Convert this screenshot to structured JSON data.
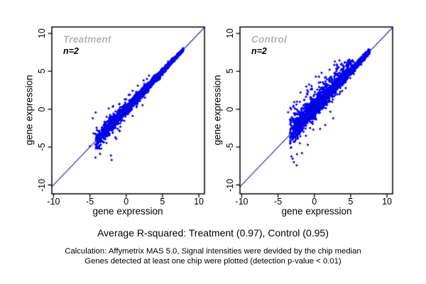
{
  "colors": {
    "point": "#0000f0",
    "identity_line": "#1616b4",
    "panel_title": "#b4b4b4",
    "axis": "#000000"
  },
  "captions": {
    "summary": "Average R-squared: Treatment (0.97), Control (0.95)",
    "footnote1": "Calculation: Affymetrix MAS 5.0, Signal intensities were devided by the chip median",
    "footnote2": "Genes detected at least one chip were plotted (detection p-value < 0.01)"
  },
  "chart_data": [
    {
      "type": "scatter",
      "title": "Treatment",
      "annotation": "n=2",
      "r_squared": 0.97,
      "xlabel": "gene expression",
      "ylabel": "gene expression",
      "xlim": [
        -10.24,
        10.78
      ],
      "ylim": [
        -11.17,
        10.85
      ],
      "xticks": [
        -10,
        -5,
        0,
        5,
        10
      ],
      "yticks": [
        -10,
        -5,
        0,
        5,
        10
      ],
      "identity_line": true,
      "cluster": {
        "seed": 42,
        "n": 3000,
        "x_min": -4.3,
        "x_max": 7.85,
        "density_power": 0.72,
        "sd_base": 0.1,
        "sd_extra": 0.5,
        "sd_power": 1.6,
        "wide_n": 140,
        "wide_mult": 2.6,
        "above_n": 0,
        "above_x_min": 0,
        "above_x_max": 0,
        "above_sd": 0
      },
      "outliers": [
        [
          -3.5,
          -4.7
        ],
        [
          -3.6,
          -5.9
        ],
        [
          -2.1,
          -6.1
        ],
        [
          -2.0,
          -6.7
        ],
        [
          -4.5,
          -3.2
        ],
        [
          -4.2,
          -4.6
        ],
        [
          -5.0,
          -4.9
        ],
        [
          -4.6,
          -1.2
        ],
        [
          -2.7,
          -1.0
        ],
        [
          -1.5,
          -3.7
        ],
        [
          -0.9,
          -2.9
        ],
        [
          -0.2,
          1.3
        ],
        [
          0.5,
          1.9
        ],
        [
          1.6,
          3.1
        ],
        [
          2.4,
          3.8
        ],
        [
          -3.1,
          -2.1
        ],
        [
          -1.8,
          0.4
        ],
        [
          0.9,
          -0.9
        ]
      ]
    },
    {
      "type": "scatter",
      "title": "Control",
      "annotation": "n=2",
      "r_squared": 0.95,
      "xlabel": "gene expression",
      "ylabel": "gene expression",
      "xlim": [
        -10.24,
        10.78
      ],
      "ylim": [
        -11.17,
        10.85
      ],
      "xticks": [
        -10,
        -5,
        0,
        5,
        10
      ],
      "yticks": [
        -10,
        -5,
        0,
        5,
        10
      ],
      "identity_line": true,
      "cluster": {
        "seed": 77,
        "n": 3000,
        "x_min": -3.4,
        "x_max": 7.6,
        "density_power": 0.7,
        "sd_base": 0.13,
        "sd_extra": 0.62,
        "sd_power": 1.35,
        "wide_n": 210,
        "wide_mult": 2.8,
        "above_n": 300,
        "above_x_min": -3.2,
        "above_x_max": 5.2,
        "above_sd": 1.25
      },
      "outliers": [
        [
          -3.6,
          -0.4
        ],
        [
          -3.2,
          0.0
        ],
        [
          -2.9,
          0.3
        ],
        [
          -2.4,
          1.0
        ],
        [
          -2.6,
          -0.7
        ],
        [
          -3.3,
          -1.6
        ],
        [
          -3.0,
          -4.0
        ],
        [
          -2.0,
          -4.5
        ],
        [
          -0.9,
          -4.7
        ],
        [
          -1.7,
          -5.8
        ],
        [
          0.8,
          -2.6
        ],
        [
          1.5,
          -2.1
        ],
        [
          2.6,
          -1.2
        ],
        [
          -1.9,
          2.2
        ],
        [
          -1.1,
          3.0
        ],
        [
          0.2,
          4.3
        ],
        [
          1.0,
          4.8
        ],
        [
          2.1,
          5.2
        ],
        [
          3.1,
          5.9
        ],
        [
          4.2,
          6.2
        ]
      ]
    }
  ]
}
